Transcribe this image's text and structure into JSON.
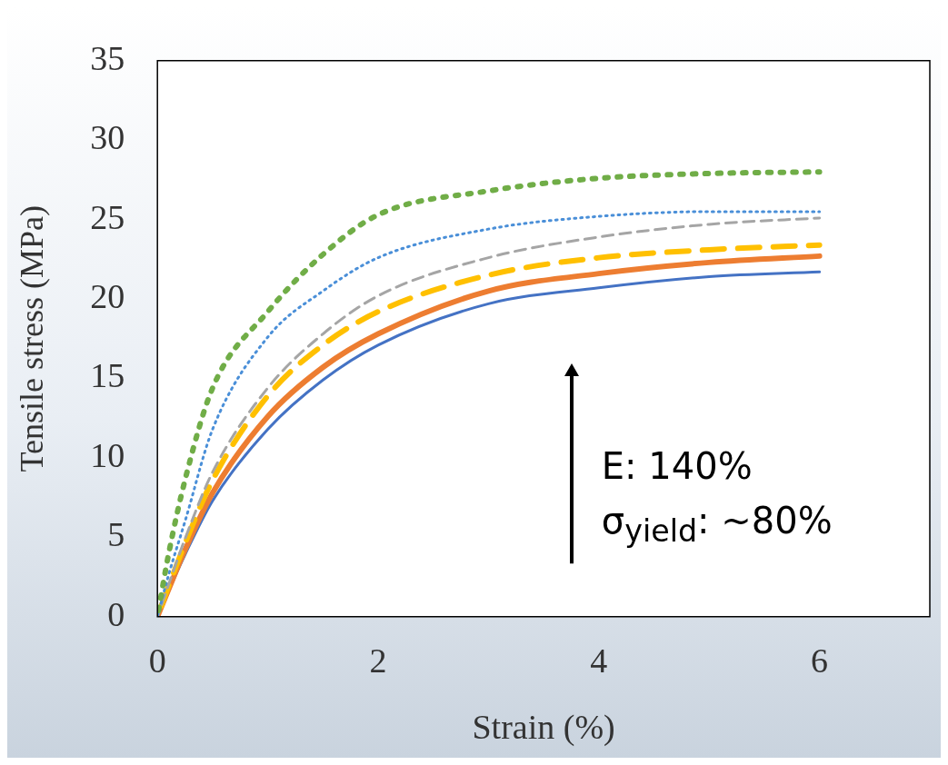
{
  "chart_data": {
    "type": "line",
    "xlabel": "Strain (%)",
    "ylabel": "Tensile stress (MPa)",
    "xlim": [
      0,
      7
    ],
    "xticks": [
      0,
      2,
      4,
      6
    ],
    "ylim": [
      0,
      35
    ],
    "yticks": [
      0,
      5,
      10,
      15,
      20,
      25,
      30,
      35
    ],
    "grid": false,
    "legend": false,
    "marker": "none",
    "x": [
      0,
      0.1,
      0.25,
      0.5,
      1,
      1.5,
      2,
      3,
      4,
      5,
      6
    ],
    "series": [
      {
        "color": "#70ad47",
        "line_style": "dotted",
        "values": [
          0,
          3.9,
          8.6,
          14.4,
          19.2,
          22.8,
          25.3,
          26.8,
          27.6,
          27.9,
          28.0
        ]
      },
      {
        "color": "#4a8fd8",
        "line_style": "dotted",
        "values": [
          0,
          2.6,
          6.0,
          11.8,
          17.6,
          20.5,
          22.6,
          24.4,
          25.2,
          25.5,
          25.5
        ]
      },
      {
        "color": "#a5a5a5",
        "line_style": "dashed",
        "values": [
          0,
          2.0,
          4.9,
          9.1,
          14.4,
          17.8,
          20.2,
          22.6,
          23.9,
          24.7,
          25.1
        ]
      },
      {
        "color": "#ffc000",
        "line_style": "dashed",
        "values": [
          0,
          1.9,
          4.6,
          8.6,
          13.9,
          17.1,
          19.2,
          21.5,
          22.6,
          23.1,
          23.4
        ]
      },
      {
        "color": "#ed7d31",
        "line_style": "solid",
        "values": [
          0,
          1.7,
          4.2,
          7.8,
          12.6,
          15.7,
          17.8,
          20.5,
          21.6,
          22.3,
          22.7
        ]
      },
      {
        "color": "#4472c4",
        "line_style": "solid",
        "values": [
          0,
          1.6,
          3.9,
          7.3,
          11.8,
          14.9,
          17.1,
          19.7,
          20.7,
          21.4,
          21.7
        ]
      }
    ],
    "annotations": [
      "E: 140%",
      "σ$_{yield}$: ~80%"
    ]
  }
}
